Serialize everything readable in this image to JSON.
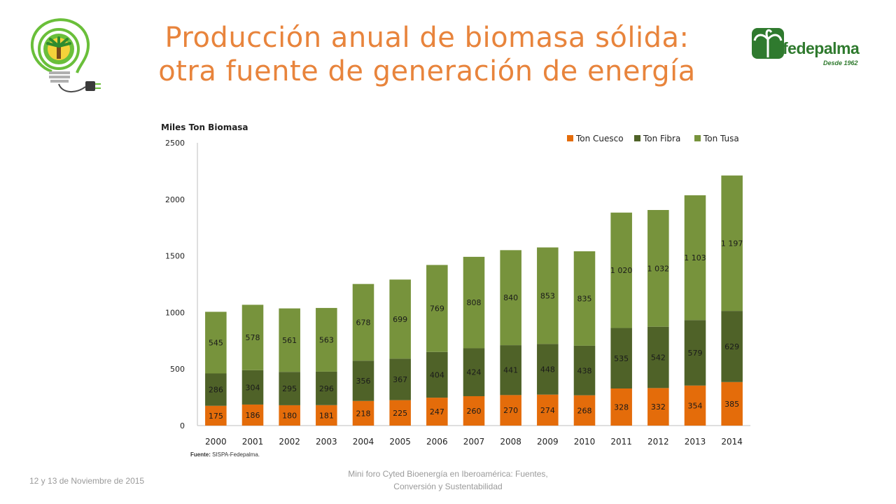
{
  "slide": {
    "title_line1": "Producción anual de biomasa sólida:",
    "title_line2": "otra fuente de generación de energía",
    "footer_date": "12 y 13 de Noviembre de 2015",
    "footer_event_line1": "Mini foro Cyted Bioenergía en Iberoamérica: Fuentes,",
    "footer_event_line2": "Conversión y Sustentabilidad",
    "source_label": "Fuente:",
    "source_text": "SISPA-Fedepalma.",
    "logo_right_brand": "fedepalma",
    "logo_right_since": "Desde 1962"
  },
  "chart_data": {
    "type": "bar",
    "stacked": true,
    "title": "",
    "ylabel": "Miles Ton Biomasa",
    "xlabel": "",
    "ylim": [
      0,
      2500
    ],
    "yticks": [
      "0",
      "500",
      "1000",
      "1500",
      "2000",
      "2500"
    ],
    "ytick_values": [
      0,
      500,
      1000,
      1500,
      2000,
      2500
    ],
    "legend_position": "top-right",
    "categories": [
      "2000",
      "2001",
      "2002",
      "2003",
      "2004",
      "2005",
      "2006",
      "2007",
      "2008",
      "2009",
      "2010",
      "2011",
      "2012",
      "2013",
      "2014"
    ],
    "series": [
      {
        "name": "Ton Cuesco",
        "color": "#e46c0a",
        "values": [
          175,
          186,
          180,
          181,
          218,
          225,
          247,
          260,
          270,
          274,
          268,
          328,
          332,
          354,
          385
        ],
        "labels": [
          "175",
          "186",
          "180",
          "181",
          "218",
          "225",
          "247",
          "260",
          "270",
          "274",
          "268",
          "328",
          "332",
          "354",
          "385"
        ]
      },
      {
        "name": "Ton Fibra",
        "color": "#4f6228",
        "values": [
          286,
          304,
          295,
          296,
          356,
          367,
          404,
          424,
          441,
          448,
          438,
          535,
          542,
          579,
          629
        ],
        "labels": [
          "286",
          "304",
          "295",
          "296",
          "356",
          "367",
          "404",
          "424",
          "441",
          "448",
          "438",
          "535",
          "542",
          "579",
          "629"
        ]
      },
      {
        "name": "Ton Tusa",
        "color": "#77933c",
        "values": [
          545,
          578,
          561,
          563,
          678,
          699,
          769,
          808,
          840,
          853,
          835,
          1020,
          1032,
          1103,
          1197
        ],
        "labels": [
          "545",
          "578",
          "561",
          "563",
          "678",
          "699",
          "769",
          "808",
          "840",
          "853",
          "835",
          "1 020",
          "1 032",
          "1 103",
          "1 197"
        ]
      }
    ]
  }
}
